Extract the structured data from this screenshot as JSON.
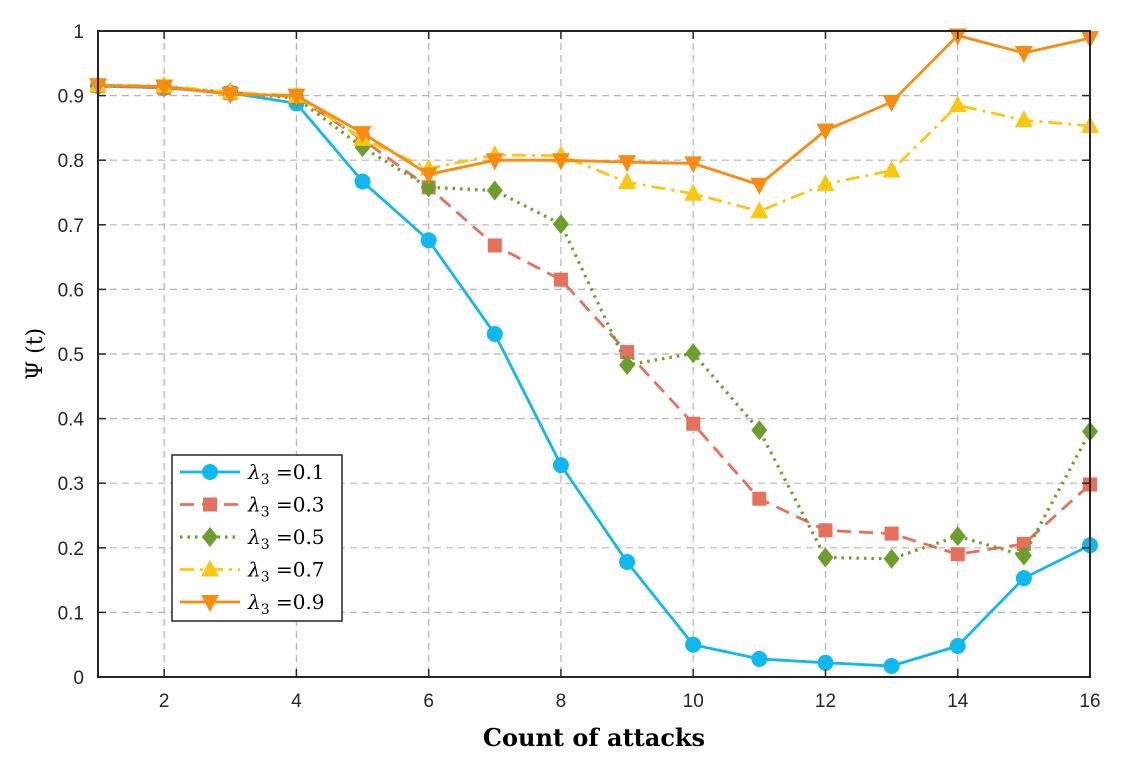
{
  "chart_data": {
    "type": "line",
    "title": "",
    "xlabel": "Count of attacks",
    "ylabel": "Ψ (t)",
    "xlim": [
      1,
      16
    ],
    "ylim": [
      0,
      1
    ],
    "grid": true,
    "legend_position": "bottom-left",
    "x": [
      1,
      2,
      3,
      4,
      5,
      6,
      7,
      8,
      9,
      10,
      11,
      12,
      13,
      14,
      15,
      16
    ],
    "x_ticks": [
      2,
      4,
      6,
      8,
      10,
      12,
      14,
      16
    ],
    "y_ticks": [
      0,
      0.1,
      0.2,
      0.3,
      0.4,
      0.5,
      0.6,
      0.7,
      0.8,
      0.9,
      1
    ],
    "x_tick_labels": [
      "2",
      "4",
      "6",
      "8",
      "10",
      "12",
      "14",
      "16"
    ],
    "y_tick_labels": [
      "0",
      "0.1",
      "0.2",
      "0.3",
      "0.4",
      "0.5",
      "0.6",
      "0.7",
      "0.8",
      "0.9",
      "1"
    ],
    "series": [
      {
        "name": "λ3 =0.1",
        "legend_prefix": "λ",
        "legend_sub": "3",
        "legend_suffix": " =0.1",
        "color": "#0fb9ef",
        "line": "solid",
        "marker": "circle",
        "values": [
          0.915,
          0.912,
          0.904,
          0.888,
          0.767,
          0.676,
          0.531,
          0.328,
          0.178,
          0.05,
          0.028,
          0.022,
          0.017,
          0.048,
          0.153,
          0.204
        ]
      },
      {
        "name": "λ3 =0.3",
        "legend_prefix": "λ",
        "legend_sub": "3",
        "legend_suffix": " =0.3",
        "color": "#e5705c",
        "line": "dashed",
        "marker": "square",
        "values": [
          0.915,
          0.912,
          0.904,
          0.898,
          0.832,
          0.758,
          0.668,
          0.615,
          0.503,
          0.392,
          0.276,
          0.227,
          0.222,
          0.19,
          0.206,
          0.298
        ]
      },
      {
        "name": "λ3 =0.5",
        "legend_prefix": "λ",
        "legend_sub": "3",
        "legend_suffix": " =0.5",
        "color": "#6b9e2a",
        "line": "dotted",
        "marker": "diamond",
        "values": [
          0.915,
          0.913,
          0.905,
          0.896,
          0.82,
          0.758,
          0.753,
          0.701,
          0.483,
          0.501,
          0.382,
          0.185,
          0.183,
          0.218,
          0.188,
          0.38
        ]
      },
      {
        "name": "λ3 =0.7",
        "legend_prefix": "λ",
        "legend_sub": "3",
        "legend_suffix": " =0.7",
        "color": "#fbc711",
        "line": "dashdot",
        "marker": "triangle-up",
        "values": [
          0.916,
          0.915,
          0.905,
          0.9,
          0.833,
          0.787,
          0.808,
          0.807,
          0.766,
          0.748,
          0.721,
          0.763,
          0.784,
          0.885,
          0.862,
          0.853
        ]
      },
      {
        "name": "λ3 =0.9",
        "legend_prefix": "λ",
        "legend_sub": "3",
        "legend_suffix": " =0.9",
        "color": "#f78c11",
        "line": "solid",
        "marker": "triangle-down",
        "values": [
          0.916,
          0.914,
          0.902,
          0.9,
          0.842,
          0.778,
          0.8,
          0.8,
          0.797,
          0.795,
          0.762,
          0.846,
          0.89,
          0.993,
          0.966,
          0.989
        ]
      }
    ]
  }
}
